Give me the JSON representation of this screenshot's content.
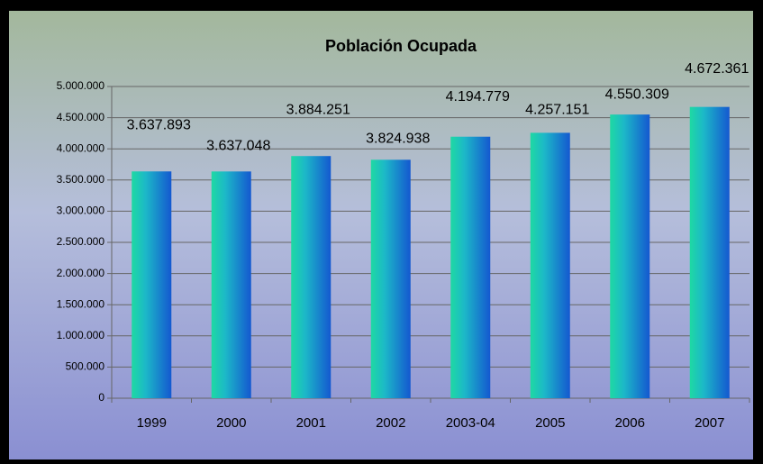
{
  "chart_data": {
    "type": "bar",
    "title": "Población Ocupada",
    "categories": [
      "1999",
      "2000",
      "2001",
      "2002",
      "2003-04",
      "2005",
      "2006",
      "2007"
    ],
    "values": [
      3637893,
      3637048,
      3884251,
      3824938,
      4194779,
      4257151,
      4550309,
      4672361
    ],
    "value_labels": [
      "3.637.893",
      "3.637.048",
      "3.884.251",
      "3.824.938",
      "4.194.779",
      "4.257.151",
      "4.550.309",
      "4.672.361"
    ],
    "color": "#1a8fd0",
    "ylim": [
      0,
      5000000
    ],
    "yticks": [
      0,
      {
        "value": 500000,
        "label": "500.000"
      },
      {
        "value": 1000000,
        "label": "1.000.000"
      },
      {
        "value": 1500000,
        "label": "1.500.000"
      },
      {
        "value": 2000000,
        "label": "2.000.000"
      },
      {
        "value": 2500000,
        "label": "2.500.000"
      },
      {
        "value": 3000000,
        "label": "3.000.000"
      },
      {
        "value": 3500000,
        "label": "3.500.000"
      },
      {
        "value": 4000000,
        "label": "4.000.000"
      },
      {
        "value": 4500000,
        "label": "4.500.000"
      },
      {
        "value": 5000000,
        "label": "5.000.000"
      }
    ],
    "grid": true
  }
}
